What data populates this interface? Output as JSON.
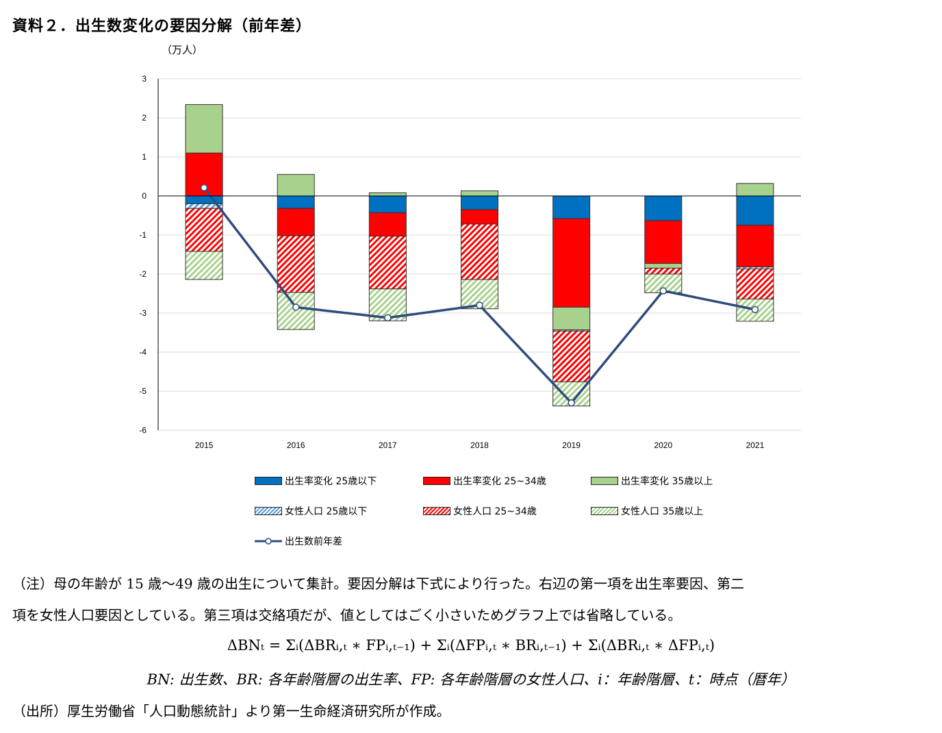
{
  "title": "資料２．出生数変化の要因分解（前年差）",
  "unit_label": "（万人）",
  "chart_data": {
    "type": "bar",
    "stacked": true,
    "categories": [
      "2015",
      "2016",
      "2017",
      "2018",
      "2019",
      "2020",
      "2021"
    ],
    "ylim": [
      -6,
      3
    ],
    "yticks": [
      3,
      2,
      1,
      0,
      -1,
      -2,
      -3,
      -4,
      -5,
      -6
    ],
    "grid": true,
    "legend_position": "bottom",
    "series": [
      {
        "name": "出生率変化 25歳以下",
        "kind": "bar",
        "color": "#0070C0",
        "pattern": "solid",
        "values": [
          -0.2,
          -0.32,
          -0.43,
          -0.35,
          -0.58,
          -0.63,
          -0.75
        ]
      },
      {
        "name": "出生率変化 25~34歳",
        "kind": "bar",
        "color": "#FF0000",
        "pattern": "solid",
        "values": [
          1.1,
          -0.7,
          -0.6,
          -0.37,
          -2.27,
          -1.1,
          -1.07
        ]
      },
      {
        "name": "出生率変化 35歳以上",
        "kind": "bar",
        "color": "#A9D18E",
        "pattern": "solid",
        "values": [
          1.24,
          0.55,
          0.08,
          0.13,
          -0.58,
          -0.12,
          0.32
        ]
      },
      {
        "name": "女性人口 25歳以下",
        "kind": "bar",
        "color": "#5B9BD5",
        "pattern": "hatch",
        "values": [
          -0.12,
          0,
          0,
          0,
          -0.03,
          0,
          -0.05
        ]
      },
      {
        "name": "女性人口 25~34歳",
        "kind": "bar",
        "color": "#FF0000",
        "pattern": "hatch",
        "values": [
          -1.1,
          -1.45,
          -1.35,
          -1.42,
          -1.3,
          -0.15,
          -0.77
        ]
      },
      {
        "name": "女性人口 35歳以上",
        "kind": "bar",
        "color": "#A9D18E",
        "pattern": "hatch",
        "values": [
          -0.72,
          -0.95,
          -0.82,
          -0.75,
          -0.62,
          -0.48,
          -0.57
        ]
      },
      {
        "name": "出生数前年差",
        "kind": "line",
        "color": "#2F4B7C",
        "values": [
          0.21,
          -2.85,
          -3.12,
          -2.8,
          -5.3,
          -2.43,
          -2.91
        ]
      }
    ]
  },
  "notes": {
    "line1": "（注）母の年齢が 15 歳～49 歳の出生について集計。要因分解は下式により行った。右辺の第一項を出生率要因、第二",
    "line2": "項を女性人口要因としている。第三項は交絡項だが、値としてはごく小さいためグラフ上では省略している。",
    "formula": "ΔBNₜ = Σᵢ(ΔBRᵢ,ₜ ∗ FPᵢ,ₜ₋₁) + Σᵢ(ΔFPᵢ,ₜ ∗ BRᵢ,ₜ₋₁) + Σᵢ(ΔBRᵢ,ₜ ∗ ΔFPᵢ,ₜ)",
    "definitions": "BN: 出生数、BR: 各年齢階層の出生率、FP: 各年齢階層の女性人口、i：年齢階層、t：時点（暦年）",
    "source": "（出所）厚生労働省「人口動態統計」より第一生命経済研究所が作成。"
  }
}
